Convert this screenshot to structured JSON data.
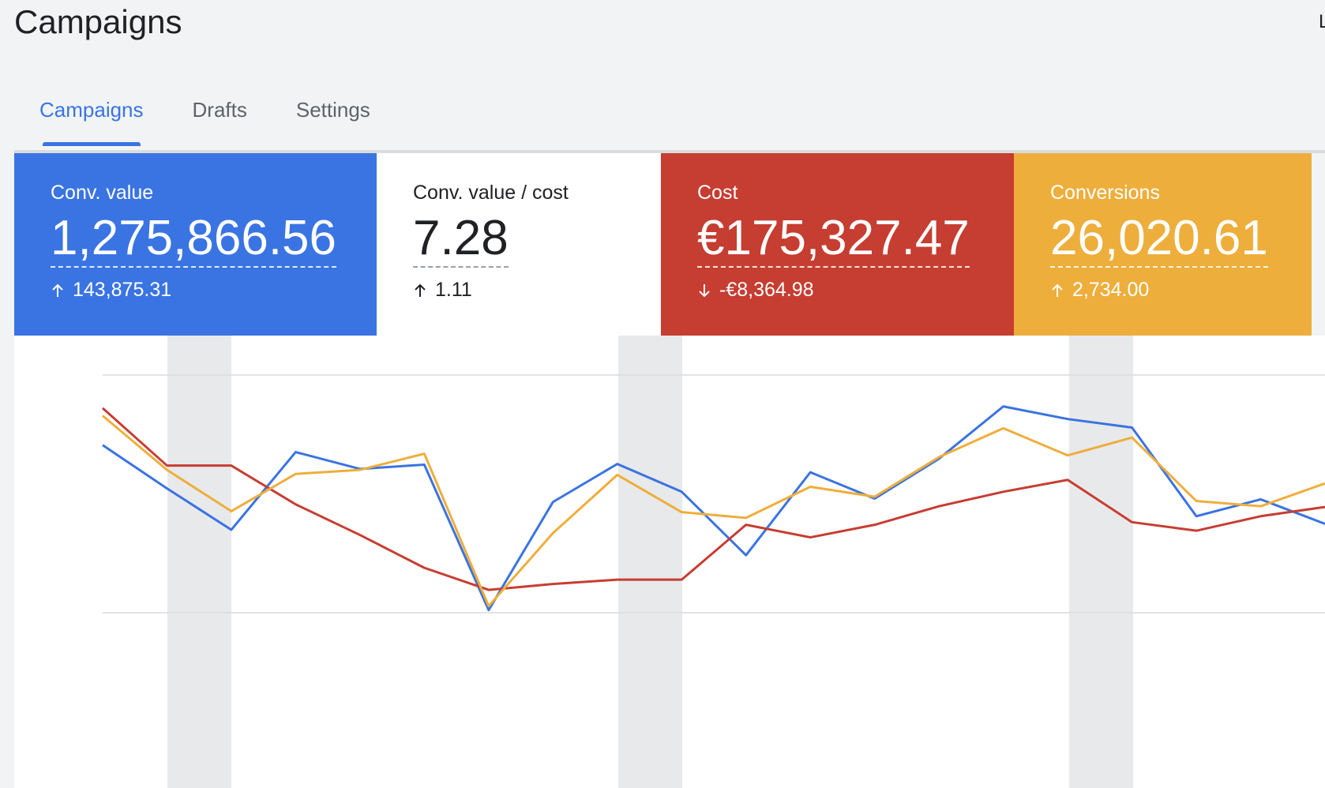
{
  "header": {
    "title": "Campaigns",
    "corner": "L"
  },
  "tabs": [
    {
      "label": "Campaigns",
      "active": true
    },
    {
      "label": "Drafts",
      "active": false
    },
    {
      "label": "Settings",
      "active": false
    }
  ],
  "cards": [
    {
      "label": "Conv. value",
      "value": "1,275,866.56",
      "delta": "143,875.31",
      "direction": "up",
      "color": "#3a74e2",
      "text": "#ffffff"
    },
    {
      "label": "Conv. value / cost",
      "value": "7.28",
      "delta": "1.11",
      "direction": "up",
      "color": "#ffffff",
      "text": "#202124"
    },
    {
      "label": "Cost",
      "value": "€175,327.47",
      "delta": "-€8,364.98",
      "direction": "down",
      "color": "#c63d31",
      "text": "#ffffff"
    },
    {
      "label": "Conversions",
      "value": "26,020.61",
      "delta": "2,734.00",
      "direction": "up",
      "color": "#eeae3c",
      "text": "#ffffff"
    }
  ],
  "chart_data": {
    "type": "line",
    "categories": [
      null,
      null,
      null,
      null,
      null,
      null,
      null,
      null,
      null,
      null,
      null,
      null,
      null,
      null,
      null,
      null,
      null,
      null,
      null,
      null
    ],
    "ylim": [
      0,
      100
    ],
    "yticks": [
      0,
      100
    ],
    "grid": true,
    "series": [
      {
        "name": "Conv. value",
        "color": "#3b73e0",
        "values": [
          70.5,
          52.3,
          34.9,
          67.6,
          60.5,
          62.3,
          1.1,
          46.6,
          62.6,
          50.9,
          24.2,
          59.1,
          48.0,
          64.8,
          86.8,
          81.5,
          77.9,
          40.6,
          47.7,
          37.4
        ]
      },
      {
        "name": "Cost",
        "color": "#c73d32",
        "values": [
          86.1,
          61.9,
          61.9,
          45.6,
          32.7,
          18.9,
          9.6,
          12.1,
          13.9,
          13.9,
          37.0,
          31.7,
          37.0,
          44.8,
          50.9,
          55.9,
          38.1,
          34.5,
          40.6,
          44.5
        ]
      },
      {
        "name": "Conversions",
        "color": "#eeae3c",
        "values": [
          82.9,
          60.1,
          42.7,
          58.4,
          60.1,
          66.9,
          2.8,
          33.5,
          58.0,
          42.3,
          39.9,
          53.0,
          48.8,
          65.5,
          77.6,
          66.2,
          73.7,
          47.0,
          44.8,
          54.4
        ]
      }
    ]
  }
}
